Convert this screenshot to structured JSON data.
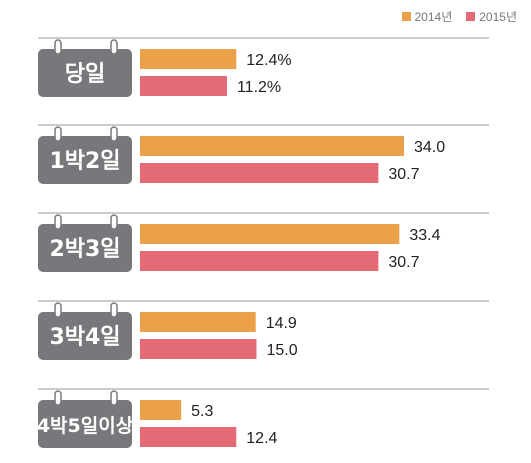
{
  "chart_data": {
    "type": "bar",
    "orientation": "horizontal",
    "categories": [
      "당일",
      "1박2일",
      "2박3일",
      "3박4일",
      "4박5일이상"
    ],
    "series": [
      {
        "name": "2014년",
        "values": [
          12.4,
          34.0,
          33.4,
          14.9,
          5.3
        ],
        "color": "#EBA14A"
      },
      {
        "name": "2015년",
        "values": [
          11.2,
          30.7,
          30.7,
          15.0,
          12.4
        ],
        "color": "#E46A75"
      }
    ],
    "value_labels": {
      "2014년": [
        "12.4%",
        "34.0",
        "33.4",
        "14.9",
        "5.3"
      ],
      "2015년": [
        "11.2%",
        "30.7",
        "30.7",
        "15.0",
        "12.4"
      ]
    },
    "xlim": [
      0,
      40
    ],
    "legend": "top-right",
    "grid": false,
    "category_badge_color": "#76787B",
    "separator_color": "#9A9A9A"
  }
}
